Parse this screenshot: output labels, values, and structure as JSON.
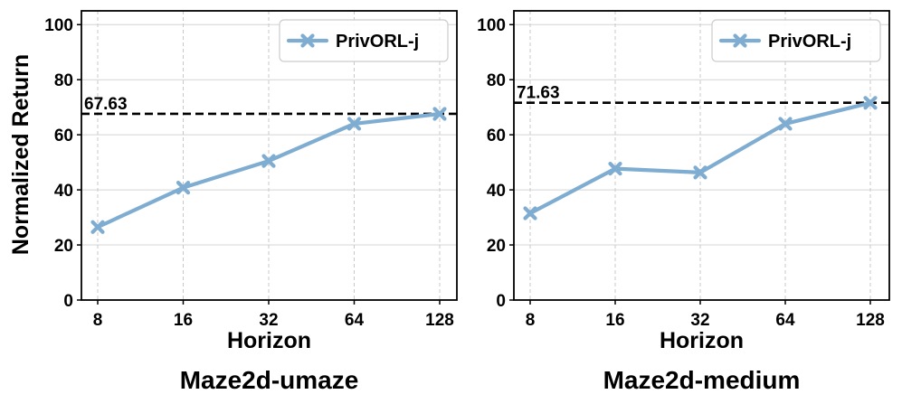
{
  "figure": {
    "ylabel": "Normalized Return"
  },
  "chart_data": [
    {
      "type": "line",
      "subtitle": "Maze2d-umaze",
      "xlabel": "Horizon",
      "ylabel": "Normalized Return",
      "categories": [
        "8",
        "16",
        "32",
        "64",
        "128"
      ],
      "series": [
        {
          "name": "PrivORL-j",
          "values": [
            26.5,
            40.8,
            50.5,
            64.0,
            67.6
          ],
          "color": "#7fadd2",
          "marker": "x"
        }
      ],
      "reference_line": {
        "value": 67.63,
        "label": "67.63",
        "style": "dashed",
        "color": "#000000"
      },
      "ylim": [
        0,
        105
      ],
      "yticks": [
        0,
        20,
        40,
        60,
        80,
        100
      ],
      "grid": true,
      "legend": "top-right"
    },
    {
      "type": "line",
      "subtitle": "Maze2d-medium",
      "xlabel": "Horizon",
      "ylabel": "",
      "categories": [
        "8",
        "16",
        "32",
        "64",
        "128"
      ],
      "series": [
        {
          "name": "PrivORL-j",
          "values": [
            31.5,
            47.7,
            46.3,
            64.0,
            71.6
          ],
          "color": "#7fadd2",
          "marker": "x"
        }
      ],
      "reference_line": {
        "value": 71.63,
        "label": "71.63",
        "style": "dashed",
        "color": "#000000"
      },
      "ylim": [
        0,
        105
      ],
      "yticks": [
        0,
        20,
        40,
        60,
        80,
        100
      ],
      "grid": true,
      "legend": "top-right"
    }
  ]
}
